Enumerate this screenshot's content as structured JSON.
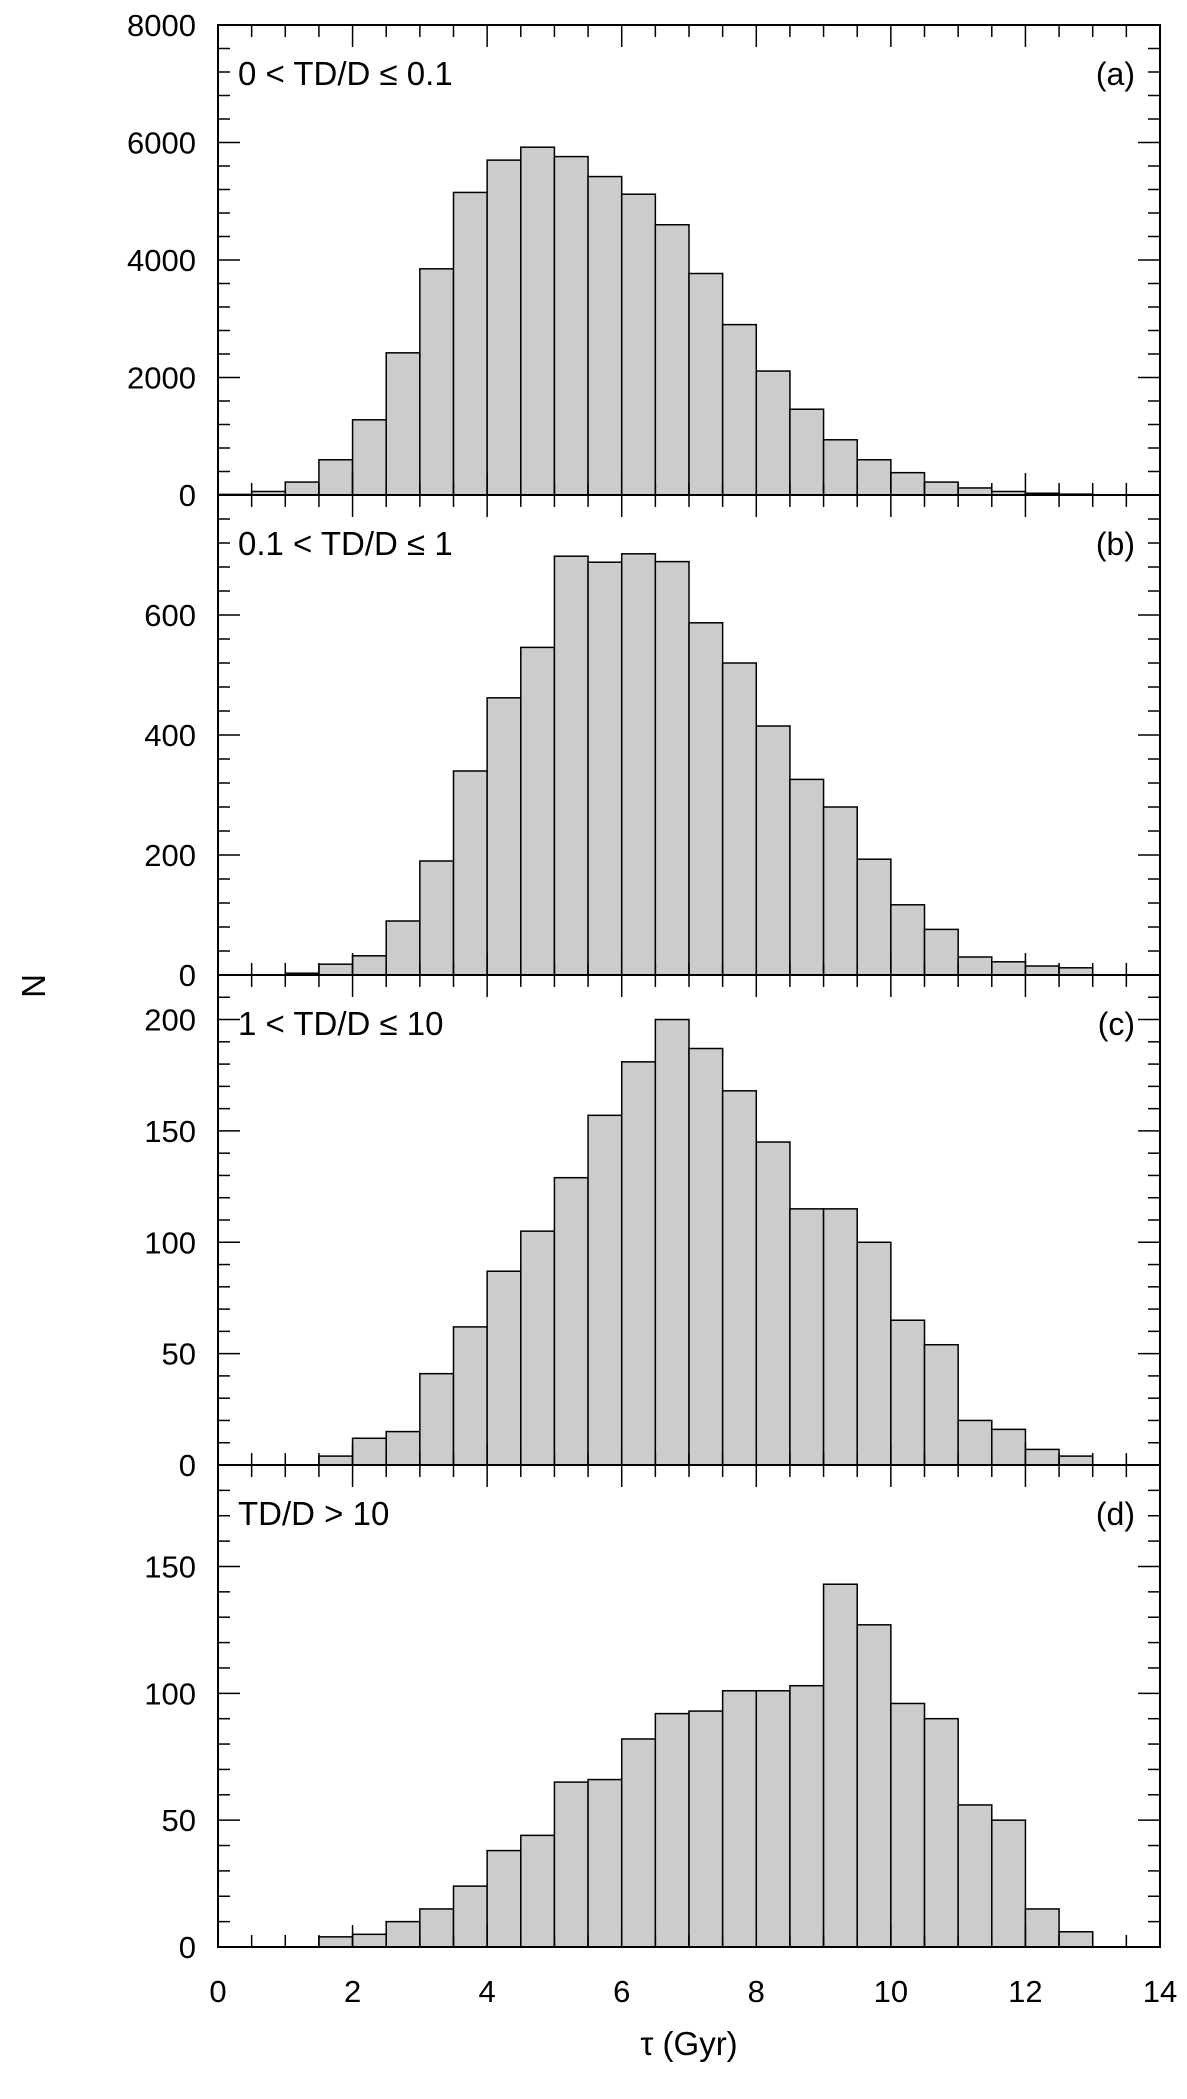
{
  "chart_data": {
    "type": "bar",
    "ylabel": "N",
    "xlabel": "τ (Gyr)",
    "xlim": [
      0,
      14
    ],
    "x_ticks": [
      0,
      2,
      4,
      6,
      8,
      10,
      12,
      14
    ],
    "bin_width": 0.5,
    "bin_start": 0,
    "panels": [
      {
        "tag": "(a)",
        "label": "0 < TD/D ≤ 0.1",
        "ylim": [
          0,
          8000
        ],
        "y_ticks": [
          0,
          2000,
          4000,
          6000,
          8000
        ],
        "values": [
          10,
          60,
          220,
          600,
          1280,
          2420,
          3850,
          5150,
          5700,
          5920,
          5760,
          5420,
          5120,
          4600,
          3770,
          2900,
          2110,
          1460,
          940,
          600,
          380,
          220,
          120,
          60,
          30,
          15,
          0,
          0
        ]
      },
      {
        "tag": "(b)",
        "label": "0.1 < TD/D ≤ 1",
        "ylim": [
          0,
          800
        ],
        "y_ticks": [
          0,
          200,
          400,
          600
        ],
        "values": [
          0,
          0,
          3,
          18,
          32,
          90,
          190,
          340,
          462,
          546,
          698,
          688,
          702,
          689,
          587,
          520,
          415,
          326,
          280,
          193,
          117,
          76,
          30,
          22,
          15,
          12,
          0,
          0
        ]
      },
      {
        "tag": "(c)",
        "label": "1 < TD/D ≤ 10",
        "ylim": [
          0,
          220
        ],
        "y_ticks": [
          0,
          50,
          100,
          150,
          200
        ],
        "values": [
          0,
          0,
          0,
          4,
          12,
          15,
          41,
          62,
          87,
          105,
          129,
          157,
          181,
          200,
          187,
          168,
          145,
          115,
          115,
          100,
          65,
          54,
          20,
          16,
          7,
          4,
          0,
          0
        ]
      },
      {
        "tag": "(d)",
        "label": "TD/D > 10",
        "ylim": [
          0,
          190
        ],
        "y_ticks": [
          0,
          50,
          100,
          150
        ],
        "values": [
          0,
          0,
          0,
          4,
          5,
          10,
          15,
          24,
          38,
          44,
          65,
          66,
          82,
          92,
          93,
          101,
          101,
          103,
          143,
          127,
          96,
          90,
          56,
          50,
          15,
          6,
          0,
          0
        ]
      }
    ],
    "bar_fill": "#cccccc",
    "bar_stroke": "#000000"
  }
}
